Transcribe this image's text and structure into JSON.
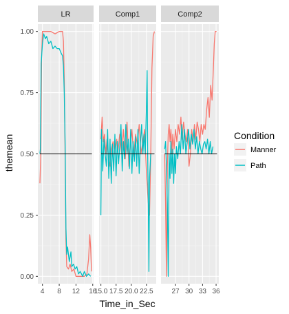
{
  "chart_data": {
    "type": "line",
    "xlabel": "Time_in_Sec",
    "ylabel": "themean",
    "y_ticks": [
      0.0,
      0.25,
      0.5,
      0.75,
      1.0
    ],
    "y_tick_labels": [
      "0.00",
      "0.25",
      "0.50",
      "0.75",
      "1.00"
    ],
    "ylim": [
      -0.03,
      1.03
    ],
    "reference_line": 0.5,
    "legend": {
      "title": "Condition",
      "position": "right",
      "entries": [
        {
          "name": "Manner",
          "color": "#F8766D"
        },
        {
          "name": "Path",
          "color": "#00BFC4"
        }
      ]
    },
    "panels": [
      {
        "label": "LR",
        "xlim": [
          2.9,
          16.2
        ],
        "x_ticks": [
          4,
          8,
          12,
          16
        ],
        "x_tick_labels": [
          "4",
          "8",
          "12",
          "16"
        ],
        "series": [
          {
            "name": "Manner",
            "points": [
              [
                3.4,
                0.38
              ],
              [
                3.6,
                0.5
              ],
              [
                3.8,
                0.9
              ],
              [
                4.0,
                1.0
              ],
              [
                5,
                1.0
              ],
              [
                6,
                1.0
              ],
              [
                7,
                0.99
              ],
              [
                8,
                1.0
              ],
              [
                8.8,
                1.0
              ],
              [
                9.0,
                0.96
              ],
              [
                9.2,
                0.8
              ],
              [
                9.4,
                0.5
              ],
              [
                9.6,
                0.15
              ],
              [
                9.8,
                0.04
              ],
              [
                10.2,
                0.03
              ],
              [
                10.6,
                0.05
              ],
              [
                11,
                0.02
              ],
              [
                11.5,
                0.03
              ],
              [
                12,
                0.0
              ],
              [
                13,
                0.0
              ],
              [
                14,
                0.0
              ],
              [
                14.6,
                0.01
              ],
              [
                15,
                0.07
              ],
              [
                15.3,
                0.17
              ],
              [
                15.5,
                0.12
              ],
              [
                15.7,
                0.02
              ]
            ]
          },
          {
            "name": "Path",
            "points": [
              [
                3.4,
                0.5
              ],
              [
                3.5,
                0.52
              ],
              [
                3.7,
                0.87
              ],
              [
                4.0,
                0.95
              ],
              [
                4.3,
                0.99
              ],
              [
                4.7,
                0.97
              ],
              [
                5.0,
                0.98
              ],
              [
                5.5,
                0.95
              ],
              [
                6,
                0.96
              ],
              [
                6.5,
                0.93
              ],
              [
                7,
                0.94
              ],
              [
                7.5,
                0.93
              ],
              [
                8,
                0.93
              ],
              [
                8.5,
                0.91
              ],
              [
                8.8,
                0.9
              ],
              [
                9.0,
                0.86
              ],
              [
                9.2,
                0.75
              ],
              [
                9.4,
                0.55
              ],
              [
                9.6,
                0.2
              ],
              [
                9.8,
                0.09
              ],
              [
                10,
                0.12
              ],
              [
                10.4,
                0.06
              ],
              [
                10.8,
                0.1
              ],
              [
                11,
                0.04
              ],
              [
                11.4,
                0.05
              ],
              [
                11.8,
                0.03
              ],
              [
                12.2,
                0.04
              ],
              [
                12.6,
                0.01
              ],
              [
                13,
                0.02
              ],
              [
                13.6,
                0.0
              ],
              [
                14,
                0.02
              ],
              [
                14.5,
                0.0
              ],
              [
                15,
                0.01
              ],
              [
                15.5,
                0.0
              ]
            ]
          }
        ]
      },
      {
        "label": "Comp1",
        "xlim": [
          14.7,
          24.1
        ],
        "x_ticks": [
          15.0,
          17.5,
          20.0,
          22.5
        ],
        "x_tick_labels": [
          "15.0",
          "17.5",
          "20.0",
          "22.5"
        ],
        "series": [
          {
            "name": "Manner",
            "points": [
              [
                15.0,
                0.56
              ],
              [
                15.2,
                0.65
              ],
              [
                15.4,
                0.55
              ],
              [
                15.6,
                0.58
              ],
              [
                15.8,
                0.5
              ],
              [
                16.0,
                0.56
              ],
              [
                16.2,
                0.5
              ],
              [
                16.5,
                0.45
              ],
              [
                16.7,
                0.52
              ],
              [
                17.0,
                0.55
              ],
              [
                17.3,
                0.5
              ],
              [
                17.6,
                0.56
              ],
              [
                17.8,
                0.51
              ],
              [
                18.1,
                0.58
              ],
              [
                18.4,
                0.5
              ],
              [
                18.7,
                0.6
              ],
              [
                19.0,
                0.48
              ],
              [
                19.3,
                0.63
              ],
              [
                19.6,
                0.45
              ],
              [
                19.8,
                0.52
              ],
              [
                20.1,
                0.6
              ],
              [
                20.4,
                0.49
              ],
              [
                20.7,
                0.58
              ],
              [
                21.0,
                0.54
              ],
              [
                21.3,
                0.62
              ],
              [
                21.6,
                0.5
              ],
              [
                21.9,
                0.55
              ],
              [
                22.2,
                0.6
              ],
              [
                22.5,
                0.42
              ],
              [
                22.8,
                0.3
              ],
              [
                23.0,
                0.25
              ],
              [
                23.2,
                0.5
              ],
              [
                23.4,
                0.85
              ],
              [
                23.6,
                0.98
              ],
              [
                23.8,
                1.0
              ]
            ]
          },
          {
            "name": "Path",
            "points": [
              [
                15.0,
                0.25
              ],
              [
                15.1,
                0.6
              ],
              [
                15.3,
                0.43
              ],
              [
                15.5,
                0.56
              ],
              [
                15.7,
                0.5
              ],
              [
                15.9,
                0.45
              ],
              [
                16.1,
                0.6
              ],
              [
                16.3,
                0.4
              ],
              [
                16.5,
                0.56
              ],
              [
                16.7,
                0.38
              ],
              [
                16.9,
                0.54
              ],
              [
                17.1,
                0.43
              ],
              [
                17.3,
                0.58
              ],
              [
                17.5,
                0.41
              ],
              [
                17.7,
                0.55
              ],
              [
                17.9,
                0.46
              ],
              [
                18.1,
                0.53
              ],
              [
                18.3,
                0.62
              ],
              [
                18.5,
                0.43
              ],
              [
                18.7,
                0.55
              ],
              [
                18.9,
                0.48
              ],
              [
                19.1,
                0.62
              ],
              [
                19.3,
                0.5
              ],
              [
                19.5,
                0.56
              ],
              [
                19.7,
                0.44
              ],
              [
                19.9,
                0.6
              ],
              [
                20.1,
                0.42
              ],
              [
                20.3,
                0.55
              ],
              [
                20.5,
                0.47
              ],
              [
                20.7,
                0.57
              ],
              [
                20.9,
                0.45
              ],
              [
                21.1,
                0.6
              ],
              [
                21.3,
                0.42
              ],
              [
                21.5,
                0.54
              ],
              [
                21.7,
                0.62
              ],
              [
                21.9,
                0.5
              ],
              [
                22.1,
                0.58
              ],
              [
                22.3,
                0.5
              ],
              [
                22.5,
                0.7
              ],
              [
                22.6,
                0.84
              ],
              [
                22.7,
                0.5
              ],
              [
                22.8,
                0.3
              ],
              [
                22.9,
                0.02
              ],
              [
                23.0,
                0.4
              ],
              [
                23.2,
                0.5
              ]
            ]
          }
        ]
      },
      {
        "label": "Comp2",
        "xlim": [
          23.8,
          36.6
        ],
        "x_ticks": [
          27,
          30,
          33,
          36
        ],
        "x_tick_labels": [
          "27",
          "30",
          "33",
          "36"
        ],
        "series": [
          {
            "name": "Manner",
            "points": [
              [
                24.6,
                0.5
              ],
              [
                24.8,
                0.3
              ],
              [
                25.0,
                0.0
              ],
              [
                25.2,
                0.45
              ],
              [
                25.4,
                0.58
              ],
              [
                25.6,
                0.62
              ],
              [
                25.8,
                0.55
              ],
              [
                26.0,
                0.6
              ],
              [
                26.2,
                0.5
              ],
              [
                26.4,
                0.58
              ],
              [
                26.7,
                0.52
              ],
              [
                27.0,
                0.6
              ],
              [
                27.3,
                0.55
              ],
              [
                27.6,
                0.62
              ],
              [
                27.9,
                0.58
              ],
              [
                28.2,
                0.65
              ],
              [
                28.5,
                0.56
              ],
              [
                28.8,
                0.63
              ],
              [
                29.1,
                0.58
              ],
              [
                29.4,
                0.55
              ],
              [
                29.7,
                0.6
              ],
              [
                30.0,
                0.45
              ],
              [
                30.3,
                0.5
              ],
              [
                30.6,
                0.6
              ],
              [
                30.9,
                0.55
              ],
              [
                31.2,
                0.62
              ],
              [
                31.5,
                0.56
              ],
              [
                31.8,
                0.63
              ],
              [
                32.1,
                0.6
              ],
              [
                32.4,
                0.55
              ],
              [
                32.7,
                0.62
              ],
              [
                33.0,
                0.58
              ],
              [
                33.3,
                0.62
              ],
              [
                33.6,
                0.6
              ],
              [
                33.9,
                0.68
              ],
              [
                34.2,
                0.73
              ],
              [
                34.5,
                0.65
              ],
              [
                34.8,
                0.78
              ],
              [
                35.1,
                0.72
              ],
              [
                35.4,
                0.85
              ],
              [
                35.6,
                0.95
              ],
              [
                35.8,
                1.0
              ],
              [
                36.1,
                1.0
              ]
            ]
          },
          {
            "name": "Path",
            "points": [
              [
                24.6,
                0.52
              ],
              [
                24.8,
                0.55
              ],
              [
                25.0,
                0.45
              ],
              [
                25.2,
                0.3
              ],
              [
                25.4,
                0.0
              ],
              [
                25.6,
                0.5
              ],
              [
                25.8,
                0.4
              ],
              [
                26.0,
                0.55
              ],
              [
                26.2,
                0.42
              ],
              [
                26.4,
                0.52
              ],
              [
                26.6,
                0.38
              ],
              [
                26.8,
                0.5
              ],
              [
                27.0,
                0.42
              ],
              [
                27.2,
                0.53
              ],
              [
                27.5,
                0.48
              ],
              [
                27.8,
                0.55
              ],
              [
                28.1,
                0.5
              ],
              [
                28.4,
                0.62
              ],
              [
                28.7,
                0.52
              ],
              [
                29.0,
                0.6
              ],
              [
                29.3,
                0.5
              ],
              [
                29.6,
                0.55
              ],
              [
                29.9,
                0.6
              ],
              [
                30.2,
                0.52
              ],
              [
                30.5,
                0.58
              ],
              [
                30.8,
                0.54
              ],
              [
                31.1,
                0.6
              ],
              [
                31.4,
                0.52
              ],
              [
                31.7,
                0.57
              ],
              [
                32.0,
                0.5
              ],
              [
                32.3,
                0.55
              ],
              [
                32.6,
                0.52
              ],
              [
                32.9,
                0.5
              ],
              [
                33.2,
                0.54
              ],
              [
                33.5,
                0.55
              ],
              [
                33.8,
                0.52
              ],
              [
                34.1,
                0.56
              ],
              [
                34.4,
                0.5
              ],
              [
                34.7,
                0.55
              ],
              [
                35.0,
                0.5
              ],
              [
                35.3,
                0.53
              ]
            ]
          }
        ]
      }
    ]
  }
}
